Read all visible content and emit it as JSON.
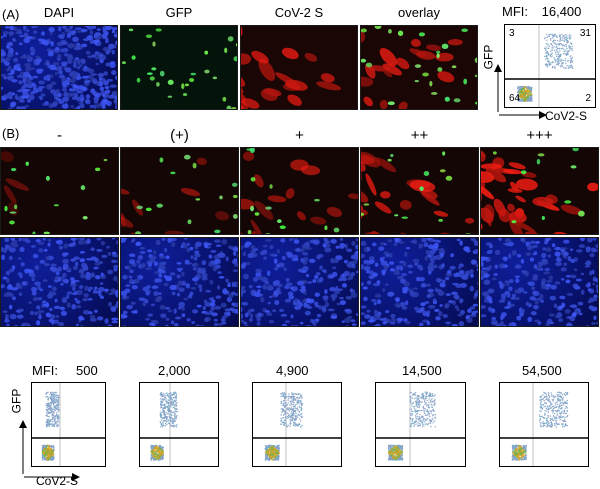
{
  "panel_a": {
    "letter": "(A)",
    "columns": [
      "DAPI",
      "GFP",
      "CoV-2 S",
      "overlay"
    ],
    "flow": {
      "mfi_label": "MFI:",
      "mfi_value": "16,400",
      "quadrants": {
        "ul": "3",
        "ur": "31",
        "ll": "64",
        "lr": "2"
      },
      "y_label": "GFP",
      "x_label": "CoV2-S"
    }
  },
  "panel_b": {
    "letter": "(B)",
    "columns": [
      "-",
      "(+)",
      "+",
      "++",
      "+++"
    ],
    "red_intensity": [
      0.08,
      0.35,
      0.55,
      0.8,
      1.0
    ],
    "green_intensity": [
      0.6,
      0.7,
      0.6,
      0.5,
      0.35
    ]
  },
  "bottom_flow": {
    "mfi_label": "MFI:",
    "values": [
      "500",
      "2,000",
      "4,900",
      "14,500",
      "54,500"
    ],
    "y_label": "GFP",
    "x_label": "CoV2-S"
  }
}
